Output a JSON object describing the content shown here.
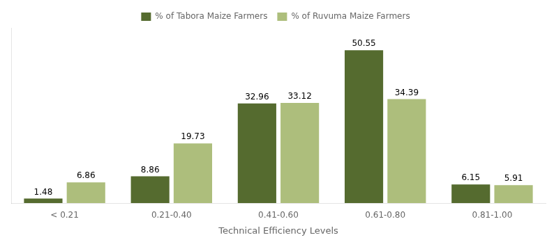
{
  "chart_data": {
    "type": "bar",
    "xlabel": "Technical Efficiency Levels",
    "categories": [
      "< 0.21",
      "0.21-0.40",
      "0.41-0.60",
      "0.61-0.80",
      "0.81-1.00"
    ],
    "series": [
      {
        "name": "% of Tabora Maize Farmers",
        "color": "#556B2F",
        "values": [
          1.48,
          8.86,
          32.96,
          50.55,
          6.15
        ]
      },
      {
        "name": "% of Ruvuma Maize Farmers",
        "color": "#ADBE7C",
        "values": [
          6.86,
          19.73,
          33.12,
          34.39,
          5.91
        ]
      }
    ],
    "ylim": [
      0,
      58
    ],
    "yticks": [],
    "grid": false,
    "legend": "top",
    "data_labels": true,
    "tick_labels": "x"
  }
}
